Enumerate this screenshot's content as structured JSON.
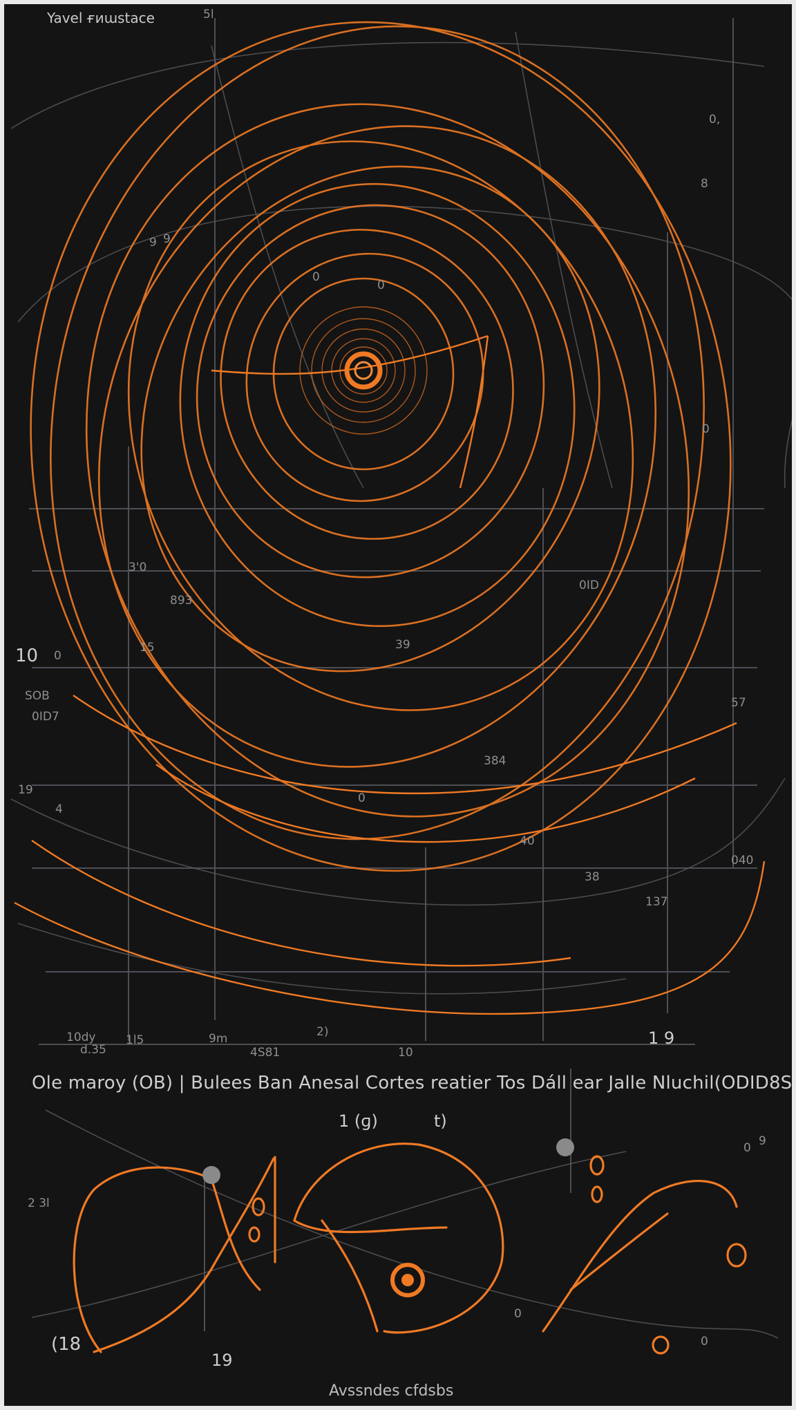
{
  "title": "Yavel ғиɯstace",
  "caption": "Ole maroy  (OB) |  Bulees Ban Anesal Cortes reatier Tos Dáll ear  Jalle Nluchil(ODID8S)",
  "footer": "Avssndes cfdsbs",
  "side_left": "10",
  "bottom_left": "(18",
  "bottom_center": "19",
  "mid_pair": [
    "1 (ɡ)",
    "t)"
  ],
  "right_mark": "1 9",
  "scribble_labels": [
    {
      "id": "s1",
      "text": "5l"
    },
    {
      "id": "s2",
      "text": "9"
    },
    {
      "id": "s3",
      "text": "0,"
    },
    {
      "id": "s4",
      "text": "9"
    },
    {
      "id": "s5",
      "text": "0"
    },
    {
      "id": "s6",
      "text": "8"
    },
    {
      "id": "s7",
      "text": "0"
    },
    {
      "id": "s8",
      "text": "0"
    },
    {
      "id": "s9",
      "text": "3ꞌ0"
    },
    {
      "id": "s10",
      "text": "893"
    },
    {
      "id": "s11",
      "text": "15"
    },
    {
      "id": "s12",
      "text": "0"
    },
    {
      "id": "s13",
      "text": "SOB"
    },
    {
      "id": "s14",
      "text": "0ID7"
    },
    {
      "id": "s15",
      "text": "39"
    },
    {
      "id": "s16",
      "text": "384"
    },
    {
      "id": "s17",
      "text": "0"
    },
    {
      "id": "s18",
      "text": "40"
    },
    {
      "id": "s19",
      "text": "38"
    },
    {
      "id": "s20",
      "text": "137"
    },
    {
      "id": "s21",
      "text": "57"
    },
    {
      "id": "s22",
      "text": "0ID"
    },
    {
      "id": "s23",
      "text": "040"
    },
    {
      "id": "s24",
      "text": "19"
    },
    {
      "id": "s25",
      "text": "4"
    },
    {
      "id": "s26",
      "text": "10dy"
    },
    {
      "id": "s27",
      "text": "d.35"
    },
    {
      "id": "s28",
      "text": "1l5"
    },
    {
      "id": "s29",
      "text": "9m"
    },
    {
      "id": "s30",
      "text": "4S81"
    },
    {
      "id": "s31",
      "text": "10"
    },
    {
      "id": "s32",
      "text": "2)"
    },
    {
      "id": "s33",
      "text": "2 3l"
    },
    {
      "id": "s34",
      "text": "0"
    },
    {
      "id": "s35",
      "text": "0"
    },
    {
      "id": "s36",
      "text": "0"
    },
    {
      "id": "s37",
      "text": "9"
    }
  ],
  "colors": {
    "background": "#141414",
    "accent": "#f07a24",
    "accent_dim": "#c9651f",
    "grid": "#4d4f56",
    "text": "#c9c9c9"
  }
}
